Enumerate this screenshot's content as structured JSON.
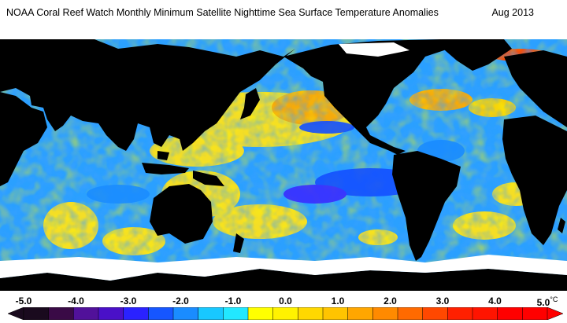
{
  "title": "NOAA Coral Reef Watch Monthly Minimum Satellite Nighttime Sea Surface Temperature Anomalies",
  "date": "Aug 2013",
  "colorbar": {
    "ticks": [
      "-5.0",
      "-4.0",
      "-3.0",
      "-2.0",
      "-1.0",
      "0.0",
      "1.0",
      "2.0",
      "3.0",
      "4.0",
      "5.0"
    ],
    "unit": "°C",
    "colors": [
      "#1a0a1e",
      "#3a0a46",
      "#51119a",
      "#4a10c8",
      "#2a22ff",
      "#1656ff",
      "#1a8cff",
      "#18c8ff",
      "#22e8ff",
      "#ffff00",
      "#fff200",
      "#ffd800",
      "#ffc400",
      "#ffa600",
      "#ff8a00",
      "#ff6a00",
      "#ff4800",
      "#ff2000",
      "#ff1400",
      "#ff0000",
      "#ff0000"
    ]
  }
}
